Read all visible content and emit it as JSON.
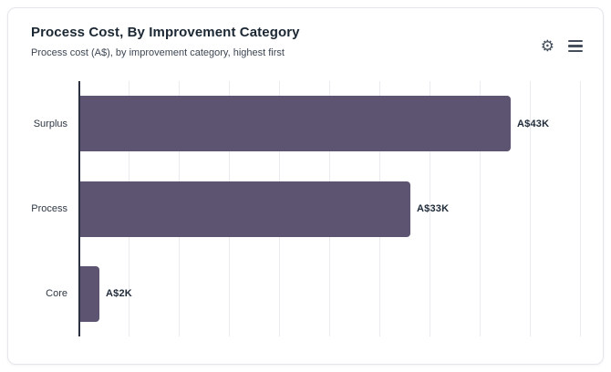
{
  "card": {
    "title": "Process Cost, By Improvement Category",
    "subtitle": "Process cost (A$), by improvement category, highest first"
  },
  "icons": {
    "settings_glyph": "⚙"
  },
  "colors": {
    "bar": "#5c5470",
    "axis": "#2b3140",
    "gridline": "#ebebef",
    "category_label": "#2e3744",
    "value_label": "#212c3a",
    "card_border": "#e4e6ea"
  },
  "chart_data": {
    "type": "bar",
    "orientation": "horizontal",
    "title": "Process Cost, By Improvement Category",
    "subtitle": "Process cost (A$), by improvement category, highest first",
    "categories": [
      "Surplus",
      "Process",
      "Core"
    ],
    "values": [
      43,
      33,
      2
    ],
    "value_labels": [
      "A$43K",
      "A$33K",
      "A$2K"
    ],
    "value_unit": "K (thousands of A$)",
    "sort_order": "highest first",
    "xlabel": "",
    "ylabel": "",
    "xlim": [
      0,
      50
    ],
    "tick_step": 5,
    "grid": "vertical-only",
    "axis_tick_labels_shown": false,
    "legend": "none"
  }
}
